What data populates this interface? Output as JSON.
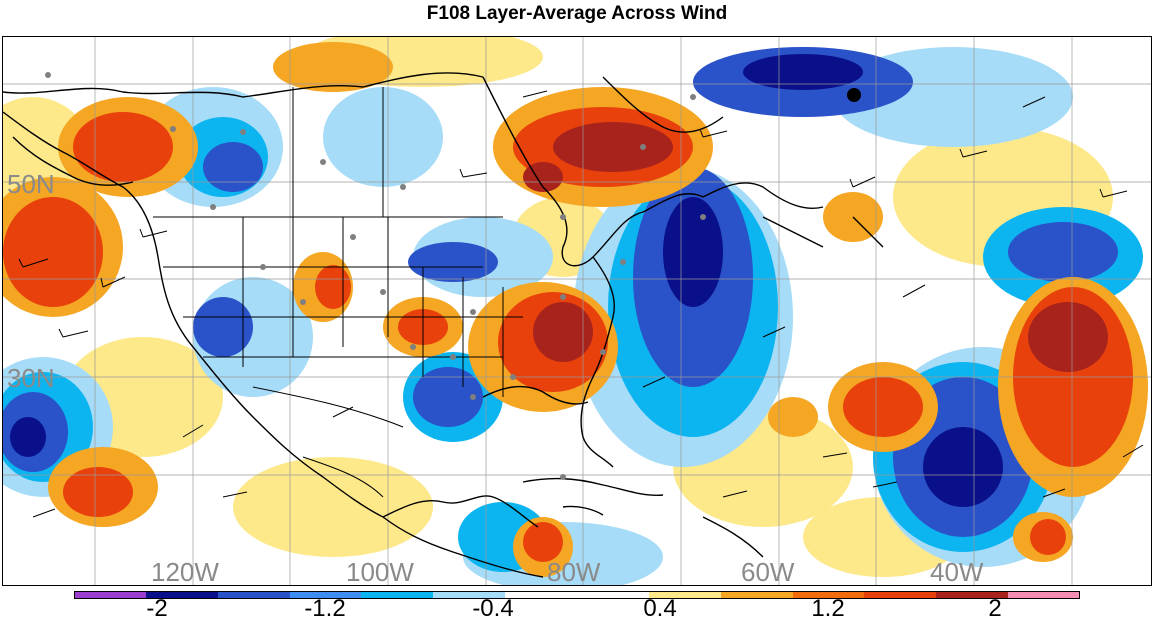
{
  "title": "F108 Layer-Average Across Wind",
  "map": {
    "lat_labels": [
      "50N",
      "30N"
    ],
    "lon_labels": [
      "120W",
      "100W",
      "80W",
      "60W",
      "40W"
    ]
  },
  "colorbar": {
    "colors": [
      "#9b3fd1",
      "#0a0f8a",
      "#2a52c9",
      "#3d8ef0",
      "#0cb4f0",
      "#a6dcf7",
      "#ffffff",
      "#ffffff",
      "#fde88a",
      "#f5a623",
      "#f26c0d",
      "#e8410c",
      "#a8231c",
      "#f48cb4"
    ],
    "labels": [
      "-2",
      "-1.2",
      "-0.4",
      "0.4",
      "1.2",
      "2"
    ]
  },
  "legend_colors": {
    "strong_negative": "#0a0f8a",
    "negative": "#2a52c9",
    "weak_negative": "#0cb4f0",
    "very_weak_negative": "#a6dcf7",
    "neutral": "#ffffff",
    "weak_positive": "#fde88a",
    "positive": "#f5a623",
    "strong_positive": "#e8410c",
    "very_strong_positive": "#a8231c"
  }
}
